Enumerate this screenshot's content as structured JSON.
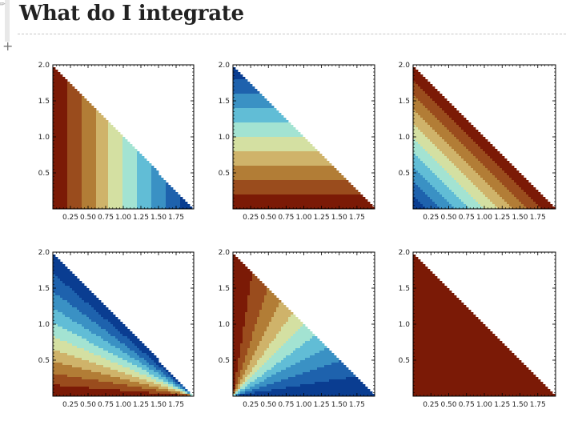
{
  "page": {
    "title": "What do I integrate"
  },
  "icons": {
    "edit": "pencil-icon",
    "add": "plus-icon",
    "add_glyph": "+",
    "edit_glyph": "✎"
  },
  "palette": [
    "#7b1a06",
    "#9a4c1d",
    "#b27d36",
    "#cfb36a",
    "#d4e0a2",
    "#a3e3d2",
    "#61bdd6",
    "#3a91c4",
    "#1e62ad",
    "#0a3d91"
  ],
  "chart_data": [
    {
      "type": "heatmap",
      "panel": "top-left",
      "region": "triangle 0 < x, 0 < y, x + y < 2",
      "xlim": [
        0,
        2
      ],
      "ylim": [
        0,
        2
      ],
      "xticks": [
        0.25,
        0.5,
        0.75,
        1.0,
        1.25,
        1.5,
        1.75
      ],
      "yticks": [
        0.5,
        1.0,
        1.5,
        2.0
      ],
      "xtick_labels": [
        "0.25",
        "0.50",
        "0.75",
        "1.00",
        "1.25",
        "1.50",
        "1.75"
      ],
      "ytick_labels": [
        "0.5",
        "1.0",
        "1.5",
        "2.0"
      ],
      "color_variable": "x",
      "color_order": "low-red-to-high-blue",
      "levels": 10
    },
    {
      "type": "heatmap",
      "panel": "top-middle",
      "region": "triangle 0 < x, 0 < y, x + y < 2",
      "xlim": [
        0,
        2
      ],
      "ylim": [
        0,
        2
      ],
      "xticks": [
        0.25,
        0.5,
        0.75,
        1.0,
        1.25,
        1.5,
        1.75
      ],
      "yticks": [
        0.5,
        1.0,
        1.5,
        2.0
      ],
      "xtick_labels": [
        "0.25",
        "0.50",
        "0.75",
        "1.00",
        "1.25",
        "1.50",
        "1.75"
      ],
      "ytick_labels": [
        "0.5",
        "1.0",
        "1.5",
        "2.0"
      ],
      "color_variable": "y",
      "color_order": "low-red-to-high-blue",
      "levels": 10
    },
    {
      "type": "heatmap",
      "panel": "top-right",
      "region": "triangle 0 < x, 0 < y, x + y < 2",
      "xlim": [
        0,
        2
      ],
      "ylim": [
        0,
        2
      ],
      "xticks": [
        0.25,
        0.5,
        0.75,
        1.0,
        1.25,
        1.5,
        1.75
      ],
      "yticks": [
        0.5,
        1.0,
        1.5,
        2.0
      ],
      "xtick_labels": [
        "0.25",
        "0.50",
        "0.75",
        "1.00",
        "1.25",
        "1.50",
        "1.75"
      ],
      "ytick_labels": [
        "0.5",
        "1.0",
        "1.5",
        "2.0"
      ],
      "color_variable": "x + y",
      "color_order": "low-blue-to-high-red",
      "levels": 10
    },
    {
      "type": "heatmap",
      "panel": "bottom-left",
      "region": "triangle 0 < x, 0 < y, x + y < 2",
      "xlim": [
        0,
        2
      ],
      "ylim": [
        0,
        2
      ],
      "xticks": [
        0.25,
        0.5,
        0.75,
        1.0,
        1.25,
        1.5,
        1.75
      ],
      "yticks": [
        0.5,
        1.0,
        1.5,
        2.0
      ],
      "xtick_labels": [
        "0.25",
        "0.50",
        "0.75",
        "1.00",
        "1.25",
        "1.50",
        "1.75"
      ],
      "ytick_labels": [
        "0.5",
        "1.0",
        "1.5",
        "2.0"
      ],
      "color_variable": "angle of (x, y) seen from (2, 0)",
      "color_order": "low-blue-to-high-red",
      "levels": 10
    },
    {
      "type": "heatmap",
      "panel": "bottom-middle",
      "region": "triangle 0 < x, 0 < y, x + y < 2",
      "xlim": [
        0,
        2
      ],
      "ylim": [
        0,
        2
      ],
      "xticks": [
        0.25,
        0.5,
        0.75,
        1.0,
        1.25,
        1.5,
        1.75
      ],
      "yticks": [
        0.5,
        1.0,
        1.5,
        2.0
      ],
      "xtick_labels": [
        "0.25",
        "0.50",
        "0.75",
        "1.00",
        "1.25",
        "1.50",
        "1.75"
      ],
      "ytick_labels": [
        "0.5",
        "1.0",
        "1.5",
        "2.0"
      ],
      "color_variable": "angle of (x, y) seen from (0, 0)",
      "color_order": "low-red-to-high-blue",
      "levels": 10
    },
    {
      "type": "heatmap",
      "panel": "bottom-right",
      "region": "triangle 0 < x, 0 < y, x + y < 2",
      "xlim": [
        0,
        2
      ],
      "ylim": [
        0,
        2
      ],
      "xticks": [
        0.25,
        0.5,
        0.75,
        1.0,
        1.25,
        1.5,
        1.75
      ],
      "yticks": [
        0.5,
        1.0,
        1.5,
        2.0
      ],
      "xtick_labels": [
        "0.25",
        "0.50",
        "0.75",
        "1.00",
        "1.25",
        "1.50",
        "1.75"
      ],
      "ytick_labels": [
        "0.5",
        "1.0",
        "1.5",
        "2.0"
      ],
      "color_variable": "angle of (x, y) seen from (0, 2)",
      "color_order": "low-red-to-high-blue",
      "levels": 10
    }
  ]
}
